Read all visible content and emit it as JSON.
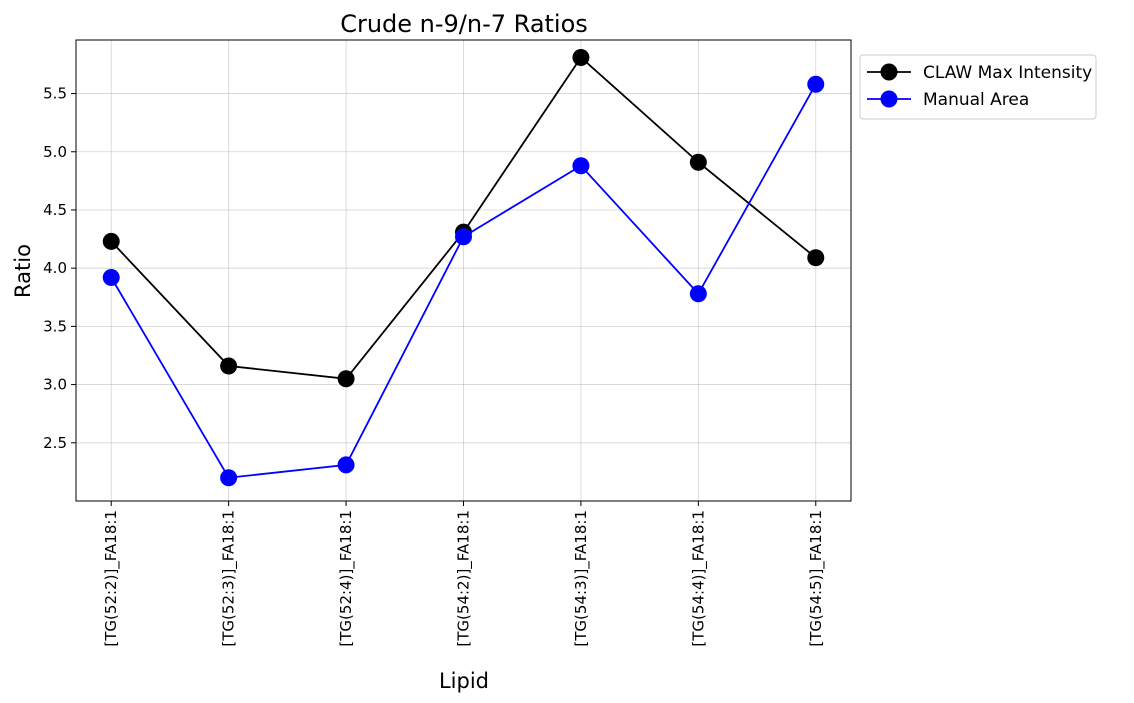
{
  "chart_data": {
    "type": "line",
    "title": "Crude n-9/n-7 Ratios",
    "xlabel": "Lipid",
    "ylabel": "Ratio",
    "categories": [
      "[TG(52:2)]_FA18:1",
      "[TG(52:3)]_FA18:1",
      "[TG(52:4)]_FA18:1",
      "[TG(54:2)]_FA18:1",
      "[TG(54:3)]_FA18:1",
      "[TG(54:4)]_FA18:1",
      "[TG(54:5)]_FA18:1"
    ],
    "series": [
      {
        "name": "CLAW Max Intensity",
        "color": "#000000",
        "values": [
          4.23,
          3.16,
          3.05,
          4.31,
          5.81,
          4.91,
          4.09
        ]
      },
      {
        "name": "Manual Area",
        "color": "#0000ff",
        "values": [
          3.92,
          2.2,
          2.31,
          4.27,
          4.88,
          3.78,
          5.58
        ]
      }
    ],
    "ylim": [
      2.0,
      5.96
    ],
    "yticks": [
      2.5,
      3.0,
      3.5,
      4.0,
      4.5,
      5.0,
      5.5
    ],
    "ytick_labels": [
      "2.5",
      "3.0",
      "3.5",
      "4.0",
      "4.5",
      "5.0",
      "5.5"
    ],
    "grid": true,
    "legend_position": "outside-top-right"
  }
}
